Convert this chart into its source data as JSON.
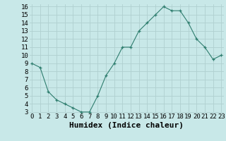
{
  "x": [
    0,
    1,
    2,
    3,
    4,
    5,
    6,
    7,
    8,
    9,
    10,
    11,
    12,
    13,
    14,
    15,
    16,
    17,
    18,
    19,
    20,
    21,
    22,
    23
  ],
  "y": [
    9.0,
    8.5,
    5.5,
    4.5,
    4.0,
    3.5,
    3.0,
    3.0,
    5.0,
    7.5,
    9.0,
    11.0,
    11.0,
    13.0,
    14.0,
    15.0,
    16.0,
    15.5,
    15.5,
    14.0,
    12.0,
    11.0,
    9.5,
    10.0
  ],
  "xlabel": "Humidex (Indice chaleur)",
  "ylim": [
    3,
    16
  ],
  "xlim": [
    0,
    23
  ],
  "yticks": [
    3,
    4,
    5,
    6,
    7,
    8,
    9,
    10,
    11,
    12,
    13,
    14,
    15,
    16
  ],
  "xticks": [
    0,
    1,
    2,
    3,
    4,
    5,
    6,
    7,
    8,
    9,
    10,
    11,
    12,
    13,
    14,
    15,
    16,
    17,
    18,
    19,
    20,
    21,
    22,
    23
  ],
  "line_color": "#2e7d6e",
  "marker": "+",
  "bg_color": "#c8e8e8",
  "grid_color": "#b0d0d0",
  "tick_label_fontsize": 6.5,
  "xlabel_fontsize": 8.0
}
